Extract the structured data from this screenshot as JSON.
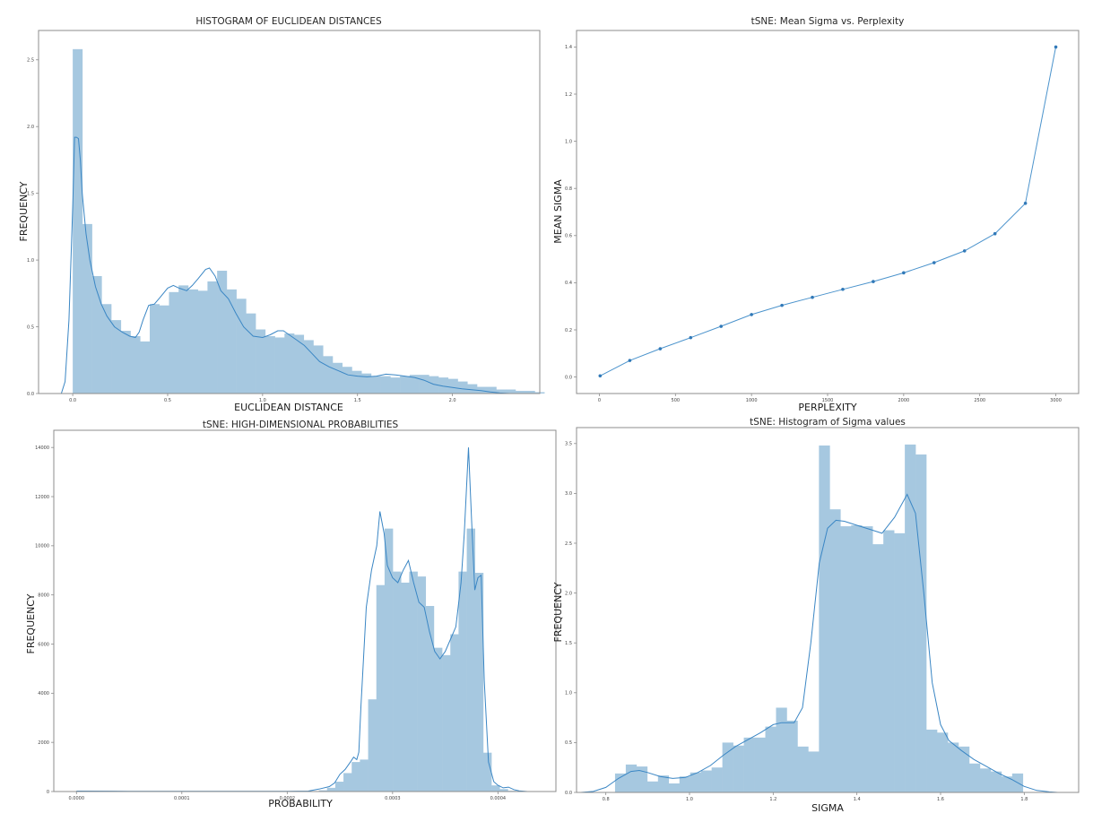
{
  "chart_data": [
    {
      "id": "euclid",
      "type": "bar",
      "title": "HISTOGRAM OF EUCLIDEAN DISTANCES",
      "xlabel": "EUCLIDEAN DISTANCE",
      "ylabel": "FREQUENCY",
      "xticks": [
        "0.0",
        "0.5",
        "1.0",
        "1.5",
        "2.0"
      ],
      "xtick_values": [
        0.0,
        0.5,
        1.0,
        1.5,
        2.0
      ],
      "yticks": [
        "0.0",
        "0.5",
        "1.0",
        "1.5",
        "2.0",
        "2.5"
      ],
      "ytick_values": [
        0.0,
        0.5,
        1.0,
        1.5,
        2.0,
        2.5
      ],
      "xlim": [
        -0.18,
        2.46
      ],
      "ylim": [
        0,
        2.72
      ],
      "bin_width": 0.0507,
      "bin_start": 0.0,
      "bins": [
        2.58,
        1.27,
        0.88,
        0.67,
        0.55,
        0.47,
        0.43,
        0.39,
        0.67,
        0.66,
        0.76,
        0.81,
        0.78,
        0.77,
        0.84,
        0.92,
        0.78,
        0.71,
        0.6,
        0.48,
        0.43,
        0.42,
        0.45,
        0.44,
        0.4,
        0.36,
        0.28,
        0.23,
        0.2,
        0.17,
        0.15,
        0.13,
        0.13,
        0.12,
        0.13,
        0.14,
        0.14,
        0.13,
        0.12,
        0.11,
        0.09,
        0.07,
        0.05,
        0.05,
        0.03,
        0.03,
        0.02,
        0.02,
        0.01,
        0.0
      ],
      "kde_x": [
        -0.06,
        -0.04,
        -0.02,
        0.0,
        0.01,
        0.02,
        0.03,
        0.04,
        0.05,
        0.07,
        0.09,
        0.12,
        0.15,
        0.18,
        0.22,
        0.26,
        0.3,
        0.33,
        0.35,
        0.37,
        0.4,
        0.43,
        0.46,
        0.5,
        0.53,
        0.56,
        0.6,
        0.63,
        0.66,
        0.7,
        0.72,
        0.75,
        0.78,
        0.82,
        0.86,
        0.9,
        0.95,
        1.0,
        1.04,
        1.08,
        1.11,
        1.14,
        1.18,
        1.22,
        1.26,
        1.3,
        1.35,
        1.4,
        1.45,
        1.5,
        1.55,
        1.6,
        1.65,
        1.7,
        1.75,
        1.8,
        1.85,
        1.9,
        1.95,
        2.0,
        2.05,
        2.1,
        2.15,
        2.2,
        2.25,
        2.3
      ],
      "kde_y": [
        0.0,
        0.09,
        0.55,
        1.4,
        1.92,
        1.92,
        1.91,
        1.75,
        1.5,
        1.2,
        1.0,
        0.8,
        0.67,
        0.58,
        0.5,
        0.46,
        0.43,
        0.42,
        0.46,
        0.55,
        0.66,
        0.67,
        0.72,
        0.79,
        0.81,
        0.79,
        0.77,
        0.81,
        0.86,
        0.93,
        0.94,
        0.88,
        0.77,
        0.71,
        0.6,
        0.5,
        0.43,
        0.42,
        0.44,
        0.47,
        0.47,
        0.44,
        0.4,
        0.36,
        0.3,
        0.24,
        0.2,
        0.17,
        0.14,
        0.13,
        0.125,
        0.13,
        0.145,
        0.14,
        0.13,
        0.12,
        0.1,
        0.07,
        0.055,
        0.045,
        0.035,
        0.028,
        0.022,
        0.012,
        0.004,
        0.0
      ]
    },
    {
      "id": "sigma_perp",
      "type": "line",
      "title": "tSNE: Mean Sigma vs. Perplexity",
      "xlabel": "PERPLEXITY",
      "ylabel": "MEAN SIGMA",
      "xticks": [
        "0",
        "500",
        "1000",
        "1500",
        "2000",
        "2500",
        "3000"
      ],
      "xtick_values": [
        0,
        500,
        1000,
        1500,
        2000,
        2500,
        3000
      ],
      "yticks": [
        "0.0",
        "0.2",
        "0.4",
        "0.6",
        "0.8",
        "1.0",
        "1.2",
        "1.4"
      ],
      "ytick_values": [
        0.0,
        0.2,
        0.4,
        0.6,
        0.8,
        1.0,
        1.2,
        1.4
      ],
      "xlim": [
        -150,
        3150
      ],
      "ylim": [
        -0.07,
        1.47
      ],
      "x": [
        5,
        200,
        400,
        600,
        800,
        1000,
        1200,
        1400,
        1600,
        1800,
        2000,
        2200,
        2400,
        2600,
        2800,
        3000
      ],
      "y": [
        0.005,
        0.07,
        0.12,
        0.167,
        0.215,
        0.265,
        0.304,
        0.338,
        0.372,
        0.405,
        0.442,
        0.485,
        0.535,
        0.608,
        0.737,
        1.4
      ]
    },
    {
      "id": "hd_prob",
      "type": "bar",
      "title": "tSNE: HIGH-DIMENSIONAL PROBABILITIES",
      "xlabel": "PROBABILITY",
      "ylabel": "FREQUENCY",
      "xticks": [
        "0.0000",
        "0.0001",
        "0.0002",
        "0.0003",
        "0.0004"
      ],
      "xtick_values": [
        0.0,
        0.0001,
        0.0002,
        0.0003,
        0.0004
      ],
      "yticks": [
        "0",
        "2000",
        "4000",
        "6000",
        "8000",
        "10000",
        "12000",
        "14000"
      ],
      "ytick_values": [
        0,
        2000,
        4000,
        6000,
        8000,
        10000,
        12000,
        14000
      ],
      "xlim": [
        -2.15e-05,
        0.000455
      ],
      "ylim": [
        0,
        14700
      ],
      "bin_width": 7.8e-06,
      "bin_start": 0.00023,
      "bins": [
        50,
        150,
        400,
        750,
        1200,
        1300,
        3750,
        8400,
        10700,
        8950,
        8500,
        8950,
        8750,
        7550,
        5850,
        5550,
        6400,
        8950,
        10700,
        8900,
        1580,
        250,
        100,
        30
      ],
      "kde_x": [
        0.0,
        5e-05,
        0.0001,
        0.00015,
        0.0002,
        0.00022,
        0.00023,
        0.00024,
        0.000245,
        0.00025,
        0.000255,
        0.00026,
        0.000263,
        0.000266,
        0.000268,
        0.00027,
        0.000275,
        0.00028,
        0.000285,
        0.000288,
        0.000292,
        0.000295,
        0.0003,
        0.000305,
        0.00031,
        0.000315,
        0.00032,
        0.000325,
        0.00033,
        0.000335,
        0.00034,
        0.000345,
        0.00035,
        0.000355,
        0.00036,
        0.000365,
        0.000368,
        0.000372,
        0.000375,
        0.000378,
        0.000381,
        0.000384,
        0.000387,
        0.000391,
        0.000396,
        0.0004,
        0.000405,
        0.00041,
        0.000415,
        0.00042,
        0.000428
      ],
      "kde_y": [
        20,
        10,
        10,
        10,
        10,
        20,
        100,
        200,
        350,
        700,
        900,
        1200,
        1400,
        1300,
        1600,
        3500,
        7500,
        9000,
        10000,
        11400,
        10500,
        9200,
        8700,
        8500,
        9000,
        9400,
        8500,
        7700,
        7500,
        6500,
        5700,
        5400,
        5700,
        6200,
        6700,
        8500,
        10500,
        14000,
        11000,
        8200,
        8700,
        8800,
        4500,
        1200,
        400,
        250,
        150,
        180,
        80,
        30,
        0
      ]
    },
    {
      "id": "sigma_hist",
      "type": "bar",
      "title": "tSNE: Histogram of Sigma values",
      "xlabel": "SIGMA",
      "ylabel": "FREQUENCY",
      "xticks": [
        "0.8",
        "1.0",
        "1.2",
        "1.4",
        "1.6",
        "1.8"
      ],
      "xtick_values": [
        0.8,
        1.0,
        1.2,
        1.4,
        1.6,
        1.8
      ],
      "yticks": [
        "0.0",
        "0.5",
        "1.0",
        "1.5",
        "2.0",
        "2.5",
        "3.0",
        "3.5"
      ],
      "ytick_values": [
        0.0,
        0.5,
        1.0,
        1.5,
        2.0,
        2.5,
        3.0,
        3.5
      ],
      "xlim": [
        0.73,
        1.93
      ],
      "ylim": [
        0,
        3.66
      ],
      "bin_width": 0.02565,
      "bin_start": 0.822,
      "bins": [
        0.19,
        0.28,
        0.26,
        0.11,
        0.17,
        0.09,
        0.16,
        0.2,
        0.22,
        0.25,
        0.5,
        0.47,
        0.55,
        0.55,
        0.66,
        0.85,
        0.72,
        0.46,
        0.41,
        3.48,
        2.84,
        2.67,
        2.68,
        2.67,
        2.49,
        2.63,
        2.6,
        3.49,
        3.39,
        0.63,
        0.6,
        0.5,
        0.46,
        0.29,
        0.24,
        0.21,
        0.16,
        0.19
      ],
      "kde_x": [
        0.74,
        0.77,
        0.8,
        0.83,
        0.86,
        0.88,
        0.9,
        0.93,
        0.96,
        0.99,
        1.02,
        1.05,
        1.08,
        1.11,
        1.14,
        1.17,
        1.2,
        1.22,
        1.25,
        1.27,
        1.29,
        1.31,
        1.33,
        1.35,
        1.37,
        1.4,
        1.43,
        1.46,
        1.49,
        1.52,
        1.54,
        1.56,
        1.58,
        1.6,
        1.62,
        1.65,
        1.68,
        1.71,
        1.74,
        1.77,
        1.8,
        1.83,
        1.86,
        1.88
      ],
      "kde_y": [
        0.0,
        0.01,
        0.05,
        0.14,
        0.21,
        0.22,
        0.2,
        0.16,
        0.14,
        0.15,
        0.2,
        0.27,
        0.37,
        0.46,
        0.53,
        0.6,
        0.68,
        0.7,
        0.7,
        0.85,
        1.5,
        2.3,
        2.65,
        2.73,
        2.72,
        2.68,
        2.64,
        2.6,
        2.76,
        2.99,
        2.8,
        2.0,
        1.1,
        0.68,
        0.52,
        0.42,
        0.33,
        0.26,
        0.19,
        0.13,
        0.06,
        0.02,
        0.005,
        0.0
      ]
    }
  ],
  "panels": {
    "euclid": {
      "title": "HISTOGRAM OF EUCLIDEAN DISTANCES",
      "xlabel": "EUCLIDEAN DISTANCE",
      "ylabel": "FREQUENCY"
    },
    "sigma_perp": {
      "title": "tSNE: Mean Sigma vs. Perplexity",
      "xlabel": "PERPLEXITY",
      "ylabel": "MEAN SIGMA"
    },
    "hd_prob": {
      "title": "tSNE: HIGH-DIMENSIONAL PROBABILITIES",
      "xlabel": "PROBABILITY",
      "ylabel": "FREQUENCY"
    },
    "sigma_hist": {
      "title": "tSNE: Histogram of Sigma values",
      "xlabel": "SIGMA",
      "ylabel": "FREQUENCY"
    }
  },
  "colors": {
    "bar": "#a6c8e0",
    "kde": "#3a86c4",
    "line": "#4b93cc",
    "point": "#3179b8",
    "frame": "#8c8c8c"
  }
}
